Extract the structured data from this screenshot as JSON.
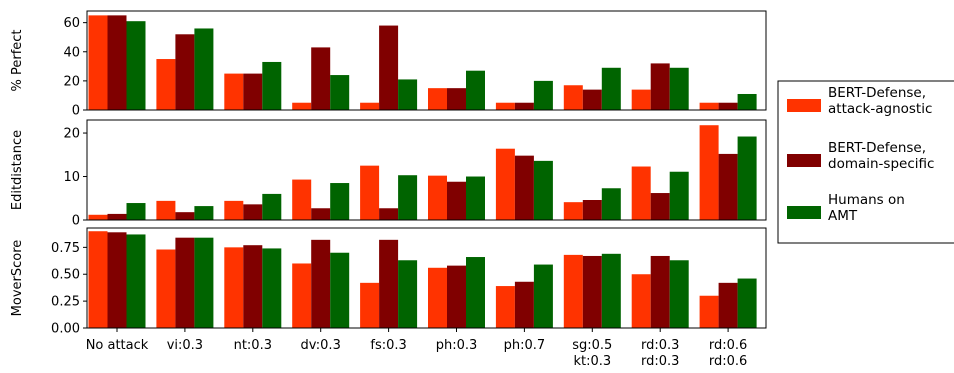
{
  "chart_data": [
    {
      "type": "bar",
      "ylabel": "% Perfect",
      "ylim": [
        0,
        68
      ],
      "yticks": [
        "0",
        "20",
        "40",
        "60"
      ],
      "ytick_values": [
        0,
        20,
        40,
        60
      ],
      "categories": [
        "No attack",
        "vi:0.3",
        "nt:0.3",
        "dv:0.3",
        "fs:0.3",
        "ph:0.3",
        "ph:0.7",
        "sg:0.5\nkt:0.3",
        "rd:0.3\nrd:0.3",
        "rd:0.6\nrd:0.6"
      ],
      "series": [
        {
          "name": "BERT-Defense, attack-agnostic",
          "color": "#ff3300",
          "values": [
            65,
            35,
            25,
            5,
            5,
            15,
            5,
            17,
            14,
            5
          ]
        },
        {
          "name": "BERT-Defense, domain-specific",
          "color": "#800000",
          "values": [
            65,
            52,
            25,
            43,
            58,
            15,
            5,
            14,
            32,
            5
          ]
        },
        {
          "name": "Humans on AMT",
          "color": "#006400",
          "values": [
            61,
            56,
            33,
            24,
            21,
            27,
            20,
            29,
            29,
            11
          ]
        }
      ],
      "grid": false
    },
    {
      "type": "bar",
      "ylabel": "Editdistance",
      "ylim": [
        0,
        23
      ],
      "yticks": [
        "0",
        "10",
        "20"
      ],
      "ytick_values": [
        0,
        10,
        20
      ],
      "series": [
        {
          "name": "BERT-Defense, attack-agnostic",
          "color": "#ff3300",
          "values": [
            1.2,
            4.4,
            4.4,
            9.3,
            12.5,
            10.2,
            16.4,
            4.1,
            12.3,
            21.8
          ]
        },
        {
          "name": "BERT-Defense, domain-specific",
          "color": "#800000",
          "values": [
            1.4,
            1.8,
            3.6,
            2.7,
            2.7,
            8.8,
            14.8,
            4.6,
            6.2,
            15.2
          ]
        },
        {
          "name": "Humans on AMT",
          "color": "#006400",
          "values": [
            3.9,
            3.2,
            6.0,
            8.5,
            10.3,
            10.0,
            13.6,
            7.3,
            11.1,
            19.2
          ]
        }
      ],
      "grid": false
    },
    {
      "type": "bar",
      "ylabel": "MoverScore",
      "ylim": [
        0,
        0.93
      ],
      "yticks": [
        "0.00",
        "0.25",
        "0.50",
        "0.75"
      ],
      "ytick_values": [
        0,
        0.25,
        0.5,
        0.75
      ],
      "series": [
        {
          "name": "BERT-Defense, attack-agnostic",
          "color": "#ff3300",
          "values": [
            0.9,
            0.73,
            0.75,
            0.6,
            0.42,
            0.56,
            0.39,
            0.68,
            0.5,
            0.3
          ]
        },
        {
          "name": "BERT-Defense, domain-specific",
          "color": "#800000",
          "values": [
            0.89,
            0.84,
            0.77,
            0.82,
            0.82,
            0.58,
            0.43,
            0.67,
            0.67,
            0.42
          ]
        },
        {
          "name": "Humans on AMT",
          "color": "#006400",
          "values": [
            0.87,
            0.84,
            0.74,
            0.7,
            0.63,
            0.66,
            0.59,
            0.69,
            0.63,
            0.46
          ]
        }
      ],
      "grid": false
    }
  ],
  "legend": {
    "placement": "right",
    "entries": [
      {
        "lines": [
          "BERT-Defense,",
          "attack-agnostic"
        ],
        "color": "#ff3300"
      },
      {
        "lines": [
          "BERT-Defense,",
          "domain-specific"
        ],
        "color": "#800000"
      },
      {
        "lines": [
          "Humans on",
          "AMT"
        ],
        "color": "#006400"
      }
    ]
  }
}
